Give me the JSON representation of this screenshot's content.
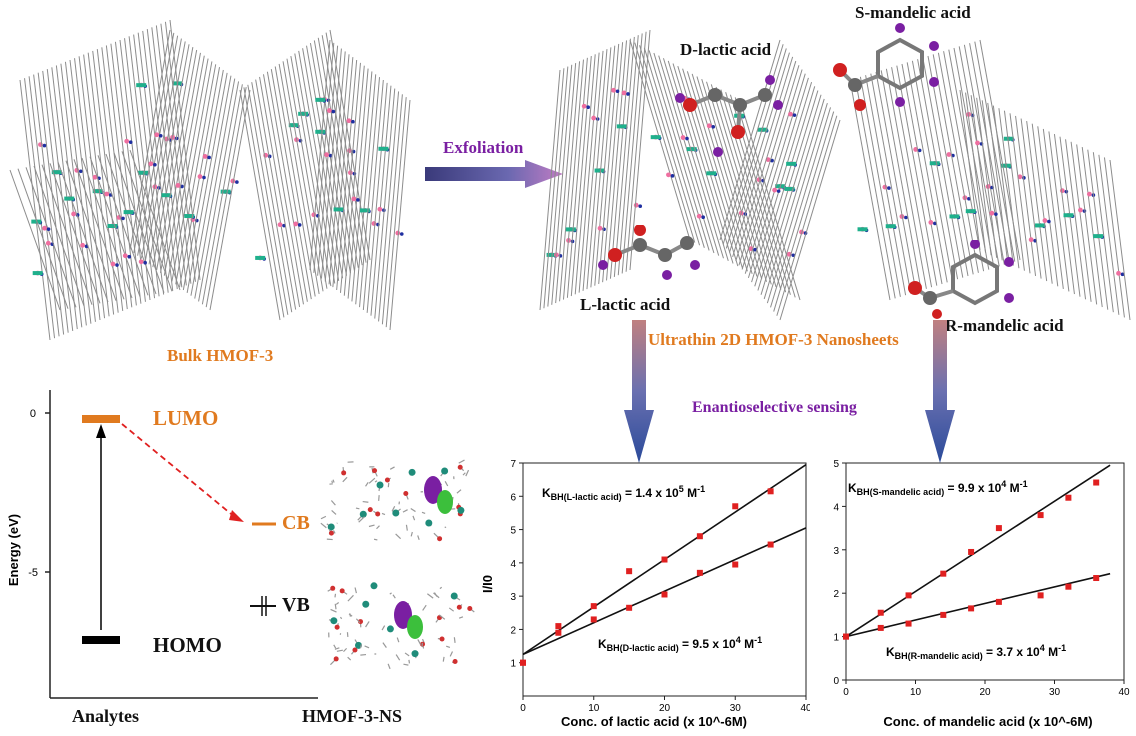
{
  "colors": {
    "orange": "#e07a1f",
    "purple": "#7a1fa2",
    "lattice_gray": "#8c8c8c",
    "pink": "#ef6fa0",
    "blue": "#1f2fa0",
    "teal": "#1fb08c",
    "red_point": "#e02020"
  },
  "labels": {
    "bulk": "Bulk HMOF-3",
    "exfoliation": "Exfoliation",
    "d_lactic": "D-lactic acid",
    "s_mandelic": "S-mandelic acid",
    "l_lactic": "L-lactic acid",
    "r_mandelic": "R-mandelic acid",
    "nanosheets": "Ultrathin 2D HMOF-3 Nanosheets",
    "enantio": "Enantioselective sensing"
  },
  "energy": {
    "ylabel": "Energy (eV)",
    "ticks": [
      "0",
      "-5"
    ],
    "lumo": "LUMO",
    "homo": "HOMO",
    "cb": "CB",
    "vb": "VB",
    "xlabel_left": "Analytes",
    "xlabel_right": "HMOF-3-NS"
  },
  "chart_data": [
    {
      "type": "scatter",
      "xlabel": "Conc. of lactic acid (x 10^-6M)",
      "ylabel": "I/I0",
      "xlim": [
        0,
        40
      ],
      "ylim": [
        0,
        7
      ],
      "xticks": [
        0,
        10,
        20,
        30,
        40
      ],
      "yticks": [
        1,
        2,
        3,
        4,
        5,
        6,
        7
      ],
      "series": [
        {
          "name": "L-lactic acid",
          "annotation": "K_BH(L-lactic acid) = 1.4 x 10^5 M-1",
          "x": [
            0,
            5,
            10,
            15,
            20,
            25,
            30,
            35
          ],
          "y": [
            1.0,
            2.1,
            2.7,
            3.75,
            4.1,
            4.8,
            5.7,
            6.15
          ],
          "fit": [
            [
              0,
              1.25
            ],
            [
              40,
              6.95
            ]
          ]
        },
        {
          "name": "D-lactic acid",
          "annotation": "K_BH(D-lactic acid) = 9.5 x 10^4 M-1",
          "x": [
            0,
            5,
            10,
            15,
            20,
            25,
            30,
            35
          ],
          "y": [
            1.0,
            1.9,
            2.3,
            2.65,
            3.05,
            3.7,
            3.95,
            4.55
          ],
          "fit": [
            [
              0,
              1.25
            ],
            [
              40,
              5.05
            ]
          ]
        }
      ]
    },
    {
      "type": "scatter",
      "xlabel": "Conc. of mandelic acid (x 10^-6M)",
      "ylabel": "",
      "xlim": [
        0,
        40
      ],
      "ylim": [
        0,
        5
      ],
      "xticks": [
        0,
        10,
        20,
        30,
        40
      ],
      "yticks": [
        0,
        1,
        2,
        3,
        4,
        5
      ],
      "series": [
        {
          "name": "S-mandelic acid",
          "annotation": "K_BH(S-mandelic acid) = 9.9 x 10^4 M-1",
          "x": [
            0,
            5,
            9,
            14,
            18,
            22,
            28,
            32,
            36
          ],
          "y": [
            1.0,
            1.55,
            1.95,
            2.45,
            2.95,
            3.5,
            3.8,
            4.2,
            4.55
          ],
          "fit": [
            [
              0,
              1.0
            ],
            [
              38,
              4.95
            ]
          ]
        },
        {
          "name": "R-mandelic acid",
          "annotation": "K_BH(R-mandelic acid) = 3.7 x 10^4 M-1",
          "x": [
            0,
            5,
            9,
            14,
            18,
            22,
            28,
            32,
            36
          ],
          "y": [
            1.0,
            1.2,
            1.3,
            1.5,
            1.65,
            1.8,
            1.95,
            2.15,
            2.35
          ],
          "fit": [
            [
              0,
              1.0
            ],
            [
              38,
              2.45
            ]
          ]
        }
      ]
    }
  ]
}
